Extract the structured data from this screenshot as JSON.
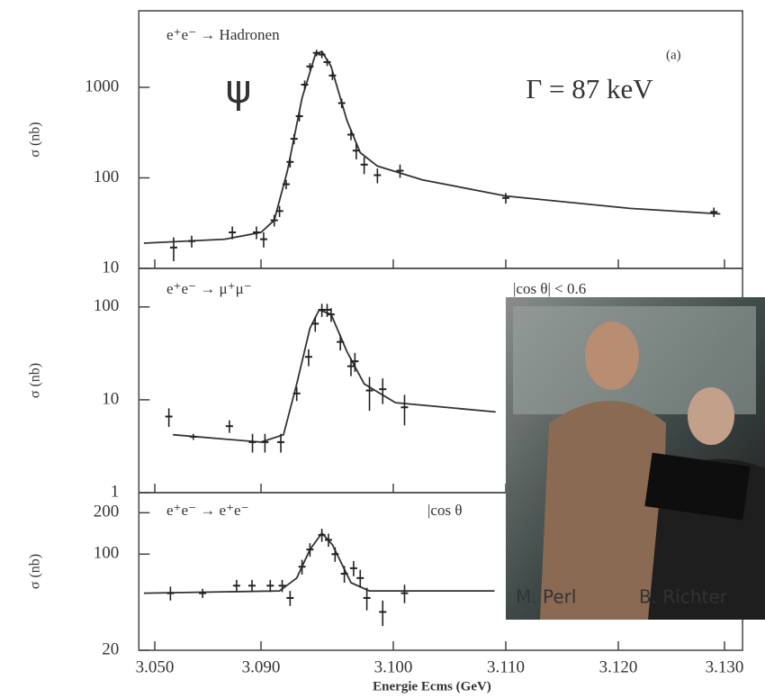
{
  "chart_data": [
    {
      "type": "scatter",
      "log_y": true,
      "ylabel": "σ (nb)",
      "annotations": [
        "e⁺e⁻ → Hadronen",
        "(a)",
        "ψ",
        "Γ = 87 keV"
      ],
      "ylim": [
        10,
        7000
      ],
      "yticks": [
        10,
        100,
        1000
      ],
      "x": [
        3.0571,
        3.0639,
        3.0792,
        3.0883,
        3.0902,
        3.091,
        3.0914,
        3.0919,
        3.0922,
        3.0925,
        3.0929,
        3.0933,
        3.0937,
        3.0942,
        3.0946,
        3.095,
        3.0954,
        3.0961,
        3.0968,
        3.0972,
        3.0978,
        3.0988,
        3.1006,
        3.11,
        3.129
      ],
      "values": [
        17,
        20,
        25,
        25,
        21,
        34,
        43,
        85,
        150,
        270,
        480,
        1070,
        1700,
        2400,
        2300,
        1900,
        1350,
        670,
        300,
        200,
        140,
        107,
        120,
        60,
        42
      ],
      "errors": [
        5,
        3,
        4,
        4,
        4,
        5,
        6,
        10,
        20,
        35,
        60,
        120,
        150,
        200,
        200,
        180,
        150,
        80,
        40,
        40,
        30,
        20,
        20,
        8,
        5
      ],
      "fit_x": [
        3.0459,
        3.0764,
        3.09,
        3.091,
        3.092,
        3.0931,
        3.0941,
        3.0946,
        3.0953,
        3.0965,
        3.0975,
        3.0988,
        3.1026,
        3.11,
        3.1211,
        3.1296
      ],
      "fit_values": [
        19,
        21,
        25,
        34,
        120,
        760,
        2290,
        2500,
        1700,
        430,
        190,
        135,
        95,
        63,
        46,
        40
      ]
    },
    {
      "type": "scatter",
      "log_y": true,
      "ylabel": "σ (nb)",
      "annotations": [
        "e⁺e⁻ → μ⁺μ⁻",
        "|cos θ| < 0.6"
      ],
      "ylim": [
        1,
        260
      ],
      "yticks": [
        1,
        10,
        100
      ],
      "x": [
        3.0553,
        3.0645,
        3.0781,
        3.0868,
        3.0903,
        3.0915,
        3.0927,
        3.0936,
        3.0941,
        3.0946,
        3.095,
        3.0953,
        3.096,
        3.0968,
        3.0971,
        3.0982,
        3.0992,
        3.101
      ],
      "values": [
        6.6,
        4.0,
        5.2,
        3.5,
        3.5,
        3.5,
        11.7,
        29,
        66,
        93,
        93,
        83,
        42,
        23,
        26,
        12.6,
        13,
        8.3
      ],
      "errors": [
        1.5,
        0.3,
        0.8,
        0.8,
        0.8,
        0.8,
        2,
        6,
        12,
        15,
        15,
        14,
        8,
        5,
        6,
        5,
        4,
        3
      ],
      "fit_x": [
        3.0568,
        3.09,
        3.0917,
        3.0927,
        3.0937,
        3.0944,
        3.0953,
        3.0965,
        3.0978,
        3.1002,
        3.1091
      ],
      "fit_values": [
        4.2,
        3.5,
        4.2,
        14.8,
        59,
        93,
        83,
        33,
        14.8,
        9.3,
        7.4
      ]
    },
    {
      "type": "scatter",
      "log_y": true,
      "ylabel": "σ (nb)",
      "xlabel": "Energie Ecms (GeV)",
      "annotations": [
        "e⁺e⁻ → e⁺e⁻",
        "|cos θ"
      ],
      "ylim": [
        20,
        280
      ],
      "yticks": [
        20,
        100,
        200
      ],
      "xlim": [
        3.044,
        3.1317
      ],
      "xticks": [
        {
          "value": 3.05,
          "label": "3.050"
        },
        {
          "value": 3.09,
          "label": "3.090"
        },
        {
          "value": 3.1,
          "label": "3.100"
        },
        {
          "value": 3.11,
          "label": "3.110"
        },
        {
          "value": 3.12,
          "label": "3.120"
        },
        {
          "value": 3.13,
          "label": "3.130"
        }
      ],
      "x": [
        3.0559,
        3.068,
        3.0808,
        3.0866,
        3.0907,
        3.0916,
        3.0922,
        3.0931,
        3.0937,
        3.0946,
        3.0951,
        3.0956,
        3.0963,
        3.097,
        3.0975,
        3.098,
        3.0992,
        3.101
      ],
      "values": [
        52,
        52,
        59,
        59,
        59,
        59,
        48,
        81,
        108,
        138,
        127,
        100,
        72,
        79,
        67,
        48,
        38,
        52
      ],
      "errors": [
        6,
        4,
        6,
        6,
        6,
        6,
        6,
        10,
        12,
        15,
        14,
        12,
        10,
        10,
        10,
        9,
        8,
        8
      ],
      "fit_x": [
        3.0459,
        3.0914,
        3.0927,
        3.0937,
        3.0946,
        3.0954,
        3.0968,
        3.0982,
        3.109
      ],
      "fit_values": [
        52,
        54,
        67,
        108,
        142,
        117,
        62,
        54,
        54
      ]
    }
  ],
  "photo": {
    "captions": [
      "M. Perl",
      "B. Richter"
    ]
  }
}
